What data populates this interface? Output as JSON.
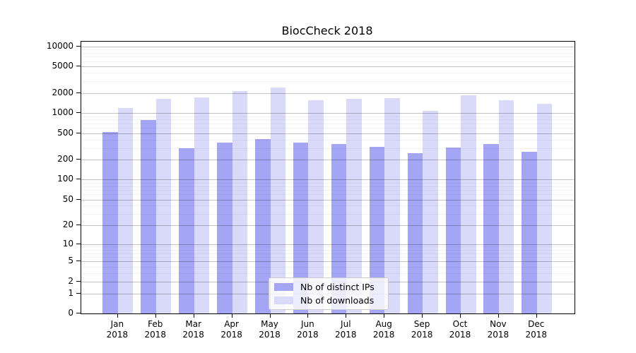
{
  "figure": {
    "background": "#ffffff"
  },
  "chart_data": {
    "type": "bar",
    "title": "BiocCheck 2018",
    "categories": [
      "Jan 2018",
      "Feb 2018",
      "Mar 2018",
      "Apr 2018",
      "May 2018",
      "Jun 2018",
      "Jul 2018",
      "Aug 2018",
      "Sep 2018",
      "Oct 2018",
      "Nov 2018",
      "Dec 2018"
    ],
    "x_tick_months": [
      "Jan",
      "Feb",
      "Mar",
      "Apr",
      "May",
      "Jun",
      "Jul",
      "Aug",
      "Sep",
      "Oct",
      "Nov",
      "Dec"
    ],
    "x_tick_year": "2018",
    "series": [
      {
        "name": "Nb of distinct IPs",
        "color": "#a5a5f6",
        "values": [
          520,
          780,
          295,
          365,
          410,
          360,
          340,
          315,
          250,
          305,
          345,
          260
        ]
      },
      {
        "name": "Nb of downloads",
        "color": "#d9d9fa",
        "values": [
          1180,
          1650,
          1700,
          2150,
          2400,
          1550,
          1620,
          1660,
          1080,
          1860,
          1550,
          1380
        ]
      }
    ],
    "y_axis": {
      "scale": "log1p",
      "ticks": [
        0,
        1,
        2,
        5,
        10,
        20,
        50,
        100,
        200,
        500,
        1000,
        2000,
        5000,
        10000
      ],
      "minor_tick_multipliers": [
        3,
        4,
        6,
        7,
        8,
        9
      ],
      "range_top": 10000
    },
    "grid": {
      "major": true,
      "minor": true
    },
    "legend_position": "inside-bottom-center",
    "colors": {
      "major_grid": "rgba(0,0,0,0.24)",
      "minor_grid": "rgba(0,0,0,0.05)",
      "axis": "#000000"
    }
  }
}
